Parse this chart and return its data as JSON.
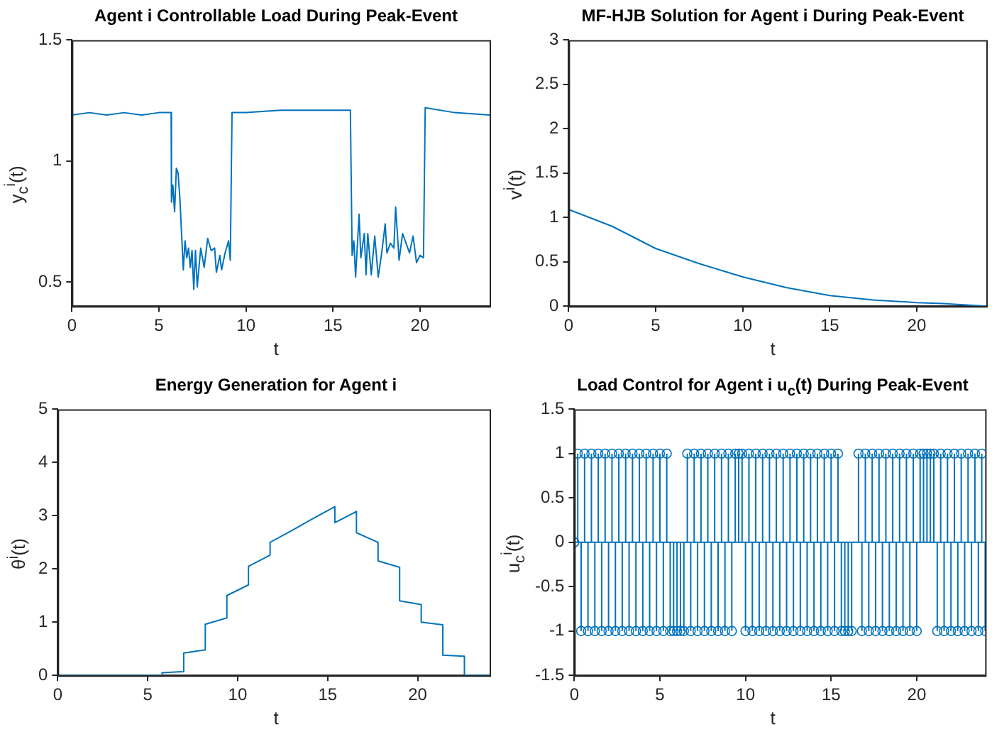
{
  "chart_data": [
    {
      "type": "line",
      "title": "Agent i Controllable Load During Peak-Event",
      "xlabel": "t",
      "ylabel": "y$_{c}$$^{i}$(t)",
      "xlim": [
        0,
        24
      ],
      "xticks": [
        0,
        5,
        10,
        15,
        20
      ],
      "ylim": [
        0.4,
        1.5
      ],
      "yticks": [
        0.5,
        1,
        1.5
      ],
      "grid": false,
      "legend": false,
      "series": [
        {
          "color": "#0072bd",
          "x": [
            0,
            1,
            2,
            3,
            4,
            5,
            5.7,
            5.72,
            5.8,
            5.9,
            6.0,
            6.1,
            6.2,
            6.4,
            6.5,
            6.6,
            6.7,
            6.8,
            6.9,
            7.0,
            7.1,
            7.2,
            7.4,
            7.6,
            7.8,
            8.0,
            8.2,
            8.3,
            8.5,
            8.6,
            8.8,
            9.0,
            9.1,
            9.2,
            10,
            12,
            14,
            16,
            16.1,
            16.2,
            16.3,
            16.5,
            16.6,
            16.8,
            16.9,
            17.0,
            17.2,
            17.4,
            17.6,
            17.8,
            18.0,
            18.1,
            18.3,
            18.5,
            18.6,
            18.8,
            19.0,
            19.2,
            19.4,
            19.6,
            19.8,
            20.0,
            20.2,
            20.3,
            22,
            24
          ],
          "values": [
            1.19,
            1.2,
            1.19,
            1.2,
            1.19,
            1.2,
            1.2,
            0.83,
            0.9,
            0.79,
            0.97,
            0.95,
            0.85,
            0.55,
            0.67,
            0.6,
            0.64,
            0.56,
            0.63,
            0.47,
            0.63,
            0.48,
            0.64,
            0.56,
            0.68,
            0.63,
            0.64,
            0.54,
            0.61,
            0.55,
            0.62,
            0.67,
            0.59,
            1.2,
            1.2,
            1.21,
            1.21,
            1.21,
            0.61,
            0.67,
            0.52,
            0.78,
            0.6,
            0.7,
            0.53,
            0.7,
            0.53,
            0.69,
            0.52,
            0.62,
            0.74,
            0.62,
            0.66,
            0.64,
            0.81,
            0.59,
            0.7,
            0.66,
            0.62,
            0.69,
            0.58,
            0.61,
            0.6,
            1.22,
            1.2,
            1.19
          ]
        }
      ]
    },
    {
      "type": "line",
      "title": "MF-HJB Solution for Agent i During Peak-Event",
      "xlabel": "t",
      "ylabel": "v$^{i}$(t)",
      "xlim": [
        0,
        24
      ],
      "xticks": [
        0,
        5,
        10,
        15,
        20
      ],
      "ylim": [
        0,
        3
      ],
      "yticks": [
        0,
        0.5,
        1,
        1.5,
        2,
        2.5,
        3
      ],
      "grid": false,
      "legend": false,
      "series": [
        {
          "color": "#0072bd",
          "x": [
            0,
            2.5,
            5,
            7.5,
            10,
            12.5,
            15,
            17.5,
            20,
            21.5,
            24
          ],
          "values": [
            1.09,
            0.9,
            0.65,
            0.48,
            0.33,
            0.21,
            0.12,
            0.07,
            0.04,
            0.03,
            0
          ]
        }
      ]
    },
    {
      "type": "line",
      "title": "Energy Generation for Agent i",
      "xlabel": "t",
      "ylabel": "θ$^{i}$(t)",
      "xlim": [
        0,
        24
      ],
      "xticks": [
        0,
        5,
        10,
        15,
        20
      ],
      "ylim": [
        0,
        5
      ],
      "yticks": [
        0,
        1,
        2,
        3,
        4,
        5
      ],
      "grid": false,
      "legend": false,
      "series": [
        {
          "color": "#0072bd",
          "x": [
            0,
            5.8,
            5.8,
            7.0,
            7.0,
            8.2,
            8.2,
            9.4,
            9.4,
            10.6,
            10.6,
            11.8,
            11.8,
            13,
            14.2,
            15.4,
            15.4,
            16.6,
            16.6,
            17.8,
            17.8,
            19.0,
            19.0,
            20.2,
            20.2,
            21.4,
            21.4,
            22.6,
            22.6,
            24
          ],
          "values": [
            0,
            0,
            0.05,
            0.07,
            0.42,
            0.48,
            0.96,
            1.08,
            1.5,
            1.7,
            2.05,
            2.26,
            2.5,
            2.72,
            2.95,
            3.17,
            2.87,
            3.08,
            2.68,
            2.5,
            2.15,
            2.03,
            1.4,
            1.33,
            1.0,
            0.95,
            0.38,
            0.36,
            0,
            0
          ]
        }
      ]
    },
    {
      "type": "lollipop",
      "title": "Load Control for Agent i u$_{c}$(t) During Peak-Event",
      "xlabel": "t",
      "ylabel": "u$_{c}$$^{i}$(t)",
      "xlim": [
        0,
        24
      ],
      "xticks": [
        0,
        5,
        10,
        15,
        20
      ],
      "ylim": [
        -1.5,
        1.5
      ],
      "ref_lines": [
        {
          "axis": "y",
          "value": 0,
          "color": "#0072bd"
        }
      ],
      "yticks": [
        -1.5,
        -1,
        -0.5,
        0,
        0.5,
        1,
        1.5
      ],
      "grid": false,
      "legend": false,
      "marker": "circle",
      "series": [
        {
          "color": "#0072bd",
          "x": [
            0,
            0.2,
            0.4,
            0.6,
            0.8,
            1,
            1.2,
            1.4,
            1.6,
            1.8,
            2,
            2.2,
            2.4,
            2.6,
            2.8,
            3,
            3.2,
            3.4,
            3.6,
            3.8,
            4,
            4.2,
            4.4,
            4.6,
            4.8,
            5,
            5.2,
            5.4,
            5.6,
            5.8,
            6,
            6.2,
            6.4,
            6.6,
            6.8,
            7,
            7.2,
            7.4,
            7.6,
            7.8,
            8,
            8.2,
            8.4,
            8.6,
            8.8,
            9,
            9.2,
            9.4,
            9.6,
            9.8,
            10,
            10.2,
            10.4,
            10.6,
            10.8,
            11,
            11.2,
            11.4,
            11.6,
            11.8,
            12,
            12.2,
            12.4,
            12.6,
            12.8,
            13,
            13.2,
            13.4,
            13.6,
            13.8,
            14,
            14.2,
            14.4,
            14.6,
            14.8,
            15,
            15.2,
            15.4,
            15.6,
            15.8,
            16,
            16.2,
            16.6,
            16.8,
            17,
            17.2,
            17.4,
            17.6,
            17.8,
            18,
            18.2,
            18.4,
            18.6,
            18.8,
            19,
            19.2,
            19.4,
            19.6,
            19.8,
            20,
            20.2,
            20.4,
            20.6,
            20.8,
            21,
            21.2,
            21.4,
            21.6,
            21.8,
            22,
            22.2,
            22.4,
            22.6,
            22.8,
            23,
            23.2,
            23.4,
            23.6,
            23.8,
            24
          ],
          "values": [
            0,
            1,
            -1,
            1,
            -1,
            1,
            -1,
            1,
            -1,
            1,
            -1,
            1,
            -1,
            1,
            -1,
            1,
            -1,
            1,
            -1,
            1,
            -1,
            1,
            -1,
            1,
            -1,
            1,
            -1,
            1,
            -1,
            -1,
            -1,
            -1,
            -1,
            1,
            -1,
            1,
            -1,
            1,
            -1,
            1,
            -1,
            1,
            -1,
            1,
            -1,
            1,
            -1,
            1,
            1,
            1,
            -1,
            1,
            -1,
            1,
            -1,
            1,
            -1,
            1,
            -1,
            1,
            -1,
            1,
            -1,
            1,
            -1,
            1,
            -1,
            1,
            -1,
            1,
            -1,
            1,
            -1,
            1,
            -1,
            1,
            -1,
            1,
            -1,
            -1,
            -1,
            -1,
            1,
            -1,
            1,
            -1,
            1,
            -1,
            1,
            -1,
            1,
            -1,
            1,
            -1,
            1,
            -1,
            1,
            -1,
            1,
            -1,
            1,
            1,
            1,
            1,
            1,
            -1,
            1,
            -1,
            1,
            -1,
            1,
            -1,
            1,
            -1,
            1,
            -1,
            1,
            -1,
            1,
            -1
          ]
        }
      ]
    }
  ]
}
